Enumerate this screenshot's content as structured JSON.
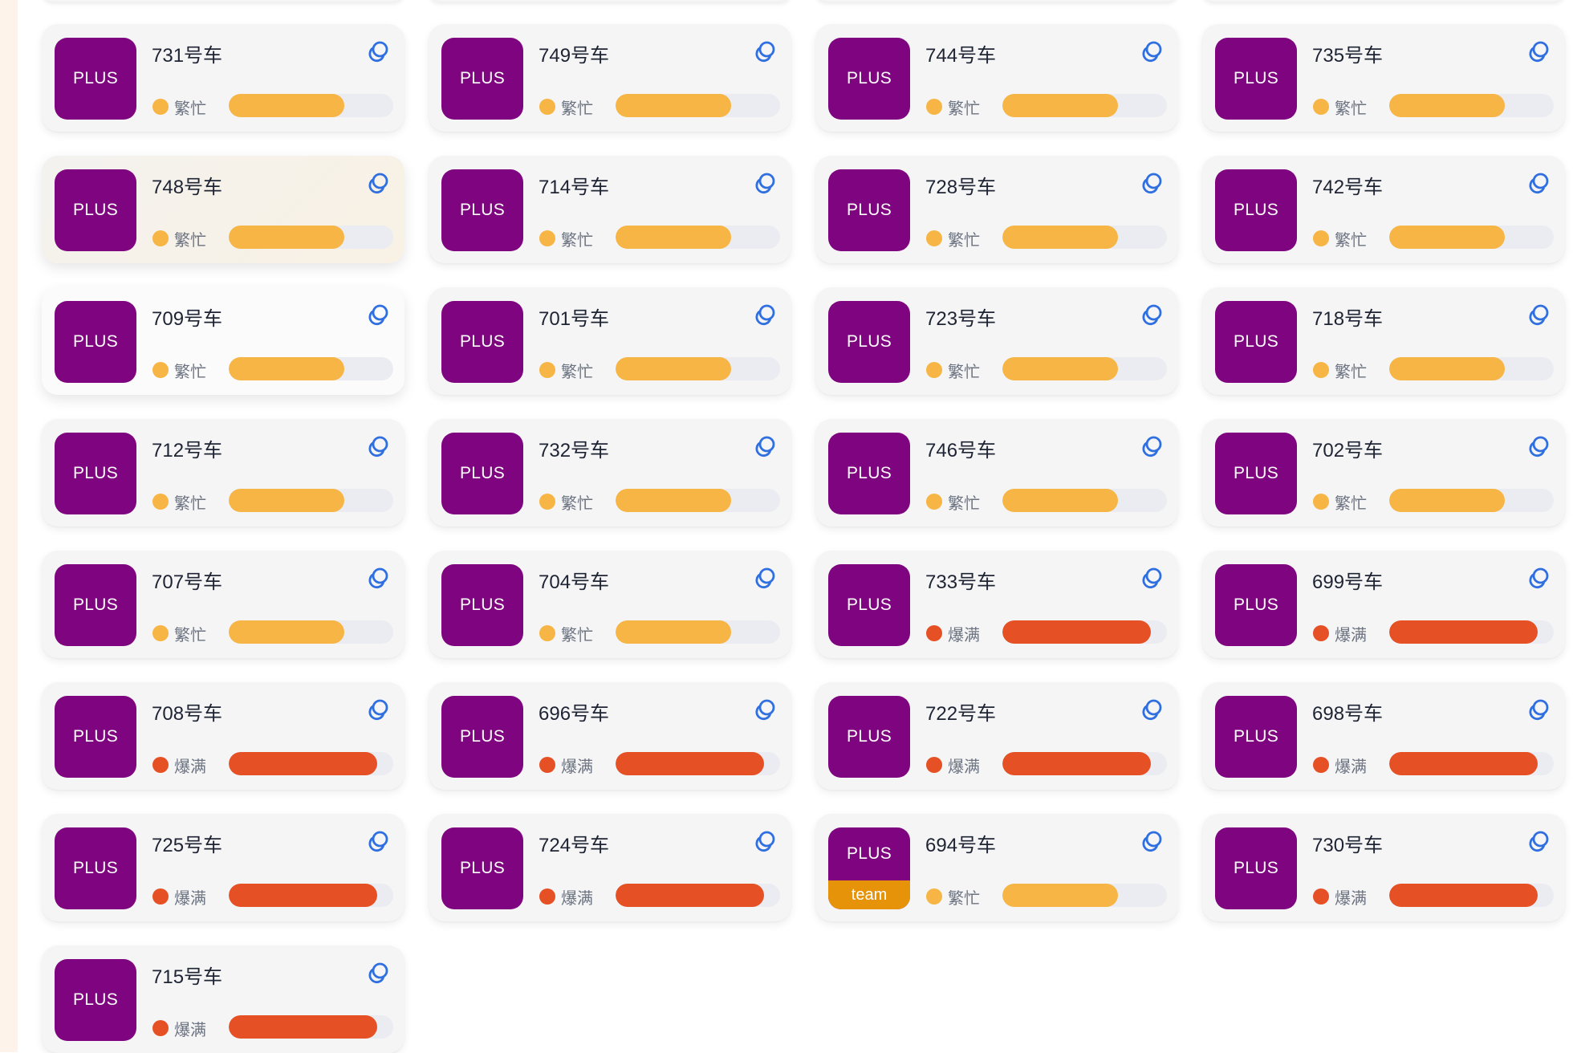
{
  "colors": {
    "badge_purple": "#7f047f",
    "badge_team_orange": "#e7930a",
    "busy_yellow": "#f6b544",
    "full_red": "#e55124",
    "link_icon_blue": "#2f6fe0"
  },
  "badge_label": "PLUS",
  "icon": "link-refresh-icon",
  "status_levels": {
    "busy": {
      "label": "繁忙",
      "color": "#f6b544",
      "fill": 0.7
    },
    "full": {
      "label": "爆满",
      "color": "#e55124",
      "fill": 0.9
    }
  },
  "cars": [
    {
      "title": "731号车",
      "badge": "PLUS",
      "status": "busy",
      "status_label": "繁忙",
      "fill": 0.7
    },
    {
      "title": "749号车",
      "badge": "PLUS",
      "status": "busy",
      "status_label": "繁忙",
      "fill": 0.7
    },
    {
      "title": "744号车",
      "badge": "PLUS",
      "status": "busy",
      "status_label": "繁忙",
      "fill": 0.7
    },
    {
      "title": "735号车",
      "badge": "PLUS",
      "status": "busy",
      "status_label": "繁忙",
      "fill": 0.7
    },
    {
      "title": "748号车",
      "badge": "PLUS",
      "status": "busy",
      "status_label": "繁忙",
      "fill": 0.7
    },
    {
      "title": "714号车",
      "badge": "PLUS",
      "status": "busy",
      "status_label": "繁忙",
      "fill": 0.7
    },
    {
      "title": "728号车",
      "badge": "PLUS",
      "status": "busy",
      "status_label": "繁忙",
      "fill": 0.7
    },
    {
      "title": "742号车",
      "badge": "PLUS",
      "status": "busy",
      "status_label": "繁忙",
      "fill": 0.7
    },
    {
      "title": "709号车",
      "badge": "PLUS",
      "status": "busy",
      "status_label": "繁忙",
      "fill": 0.7
    },
    {
      "title": "701号车",
      "badge": "PLUS",
      "status": "busy",
      "status_label": "繁忙",
      "fill": 0.7
    },
    {
      "title": "723号车",
      "badge": "PLUS",
      "status": "busy",
      "status_label": "繁忙",
      "fill": 0.7
    },
    {
      "title": "718号车",
      "badge": "PLUS",
      "status": "busy",
      "status_label": "繁忙",
      "fill": 0.7
    },
    {
      "title": "712号车",
      "badge": "PLUS",
      "status": "busy",
      "status_label": "繁忙",
      "fill": 0.7
    },
    {
      "title": "732号车",
      "badge": "PLUS",
      "status": "busy",
      "status_label": "繁忙",
      "fill": 0.7
    },
    {
      "title": "746号车",
      "badge": "PLUS",
      "status": "busy",
      "status_label": "繁忙",
      "fill": 0.7
    },
    {
      "title": "702号车",
      "badge": "PLUS",
      "status": "busy",
      "status_label": "繁忙",
      "fill": 0.7
    },
    {
      "title": "707号车",
      "badge": "PLUS",
      "status": "busy",
      "status_label": "繁忙",
      "fill": 0.7
    },
    {
      "title": "704号车",
      "badge": "PLUS",
      "status": "busy",
      "status_label": "繁忙",
      "fill": 0.7
    },
    {
      "title": "733号车",
      "badge": "PLUS",
      "status": "full",
      "status_label": "爆满",
      "fill": 0.9
    },
    {
      "title": "699号车",
      "badge": "PLUS",
      "status": "full",
      "status_label": "爆满",
      "fill": 0.9
    },
    {
      "title": "708号车",
      "badge": "PLUS",
      "status": "full",
      "status_label": "爆满",
      "fill": 0.9
    },
    {
      "title": "696号车",
      "badge": "PLUS",
      "status": "full",
      "status_label": "爆满",
      "fill": 0.9
    },
    {
      "title": "722号车",
      "badge": "PLUS",
      "status": "full",
      "status_label": "爆满",
      "fill": 0.9
    },
    {
      "title": "698号车",
      "badge": "PLUS",
      "status": "full",
      "status_label": "爆满",
      "fill": 0.9
    },
    {
      "title": "725号车",
      "badge": "PLUS",
      "status": "full",
      "status_label": "爆满",
      "fill": 0.9
    },
    {
      "title": "724号车",
      "badge": "PLUS",
      "status": "full",
      "status_label": "爆满",
      "fill": 0.9
    },
    {
      "title": "694号车",
      "badge": "PLUS",
      "team_label": "team",
      "status": "busy",
      "status_label": "繁忙",
      "fill": 0.7
    },
    {
      "title": "730号车",
      "badge": "PLUS",
      "status": "full",
      "status_label": "爆满",
      "fill": 0.9
    },
    {
      "title": "715号车",
      "badge": "PLUS",
      "status": "full",
      "status_label": "爆满",
      "fill": 0.9
    }
  ]
}
